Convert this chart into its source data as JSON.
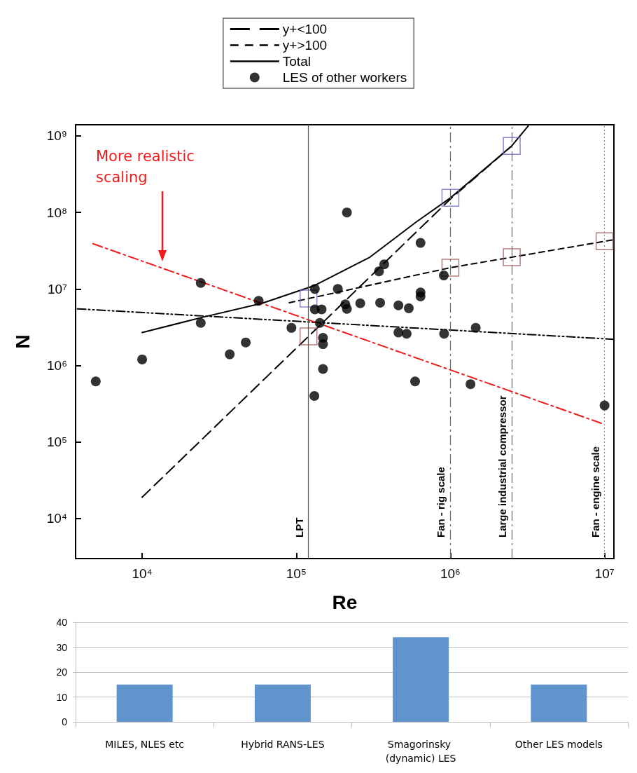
{
  "chart_data": [
    {
      "type": "scatter",
      "xlabel": "Re",
      "ylabel": "N",
      "log": "xy",
      "xlim": [
        3700,
        11500000
      ],
      "ylim": [
        3000,
        1400000000
      ],
      "xticks": [
        {
          "value": 10000,
          "label": "10⁴"
        },
        {
          "value": 100000,
          "label": "10⁵"
        },
        {
          "value": 1000000,
          "label": "10⁶"
        },
        {
          "value": 10000000,
          "label": "10⁷"
        }
      ],
      "yticks": [
        {
          "value": 10000,
          "label": "10⁴"
        },
        {
          "value": 100000,
          "label": "10⁵"
        },
        {
          "value": 1000000,
          "label": "10⁶"
        },
        {
          "value": 10000000,
          "label": "10⁷"
        },
        {
          "value": 100000000,
          "label": "10⁸"
        },
        {
          "value": 1000000000,
          "label": "10⁹"
        }
      ],
      "grid": false,
      "legend": "top",
      "annotations": [
        "More realistic scaling"
      ],
      "ref_lines": [
        {
          "axis": "x",
          "value": 120000,
          "label": "LPT",
          "line_style": "solid",
          "color": "#555555"
        },
        {
          "axis": "x",
          "value": 1000000,
          "label": "Fan - rig scale",
          "line_style": "dash_dot",
          "color": "#666666"
        },
        {
          "axis": "x",
          "value": 2500000,
          "label": "Large industrial compressor",
          "line_style": "dash_dot",
          "color": "#666666"
        },
        {
          "axis": "x",
          "value": 10000000,
          "label": "Fan - engine scale",
          "line_style": "dotted",
          "color": "#888888"
        }
      ],
      "series": [
        {
          "name": "y+<100",
          "type": "line",
          "color": "#000000",
          "line_style": "long_dashed",
          "x": [
            10000,
            120000,
            1000000,
            2500000
          ],
          "values": [
            19000,
            2400000,
            150000000,
            740000000
          ]
        },
        {
          "name": "y+>100",
          "type": "line",
          "color": "#000000",
          "line_style": "dashed",
          "x": [
            90000,
            1000000,
            2500000,
            10000000,
            11500000
          ],
          "values": [
            6600000,
            19000000,
            26000000,
            42000000,
            44000000
          ]
        },
        {
          "name": "Total",
          "type": "line",
          "color": "#000000",
          "line_style": "solid",
          "x": [
            10000,
            25000,
            60000,
            130000,
            300000,
            600000,
            1000000,
            2500000,
            3200000
          ],
          "values": [
            2700000,
            4300000,
            6500000,
            11000000,
            26000000,
            75000000,
            155000000,
            740000000,
            1350000000
          ]
        },
        {
          "name": "LES of other workers",
          "type": "scatter",
          "color": "#000000",
          "marker": "circle",
          "x": [
            5000,
            10000,
            24000,
            24000,
            37000,
            47000,
            57000,
            93000,
            131000,
            132000,
            132000,
            146000,
            142000,
            149000,
            149000,
            149000,
            186000,
            213000,
            208000,
            213000,
            260000,
            344000,
            372000,
            350000,
            460000,
            460000,
            537000,
            520000,
            590000,
            640000,
            640000,
            640000,
            906000,
            910000,
            1350000,
            1460000,
            10000000
          ],
          "values": [
            620000,
            1200000,
            12000000,
            3600000,
            1400000,
            2000000,
            7000000,
            3100000,
            400000,
            10000000,
            5400000,
            5400000,
            3600000,
            2300000,
            1900000,
            900000,
            10000000,
            100000000,
            6300000,
            5500000,
            6500000,
            17000000,
            21000000,
            6600000,
            6100000,
            2700000,
            5600000,
            2600000,
            620000,
            40000000,
            9000000,
            8000000,
            15000000,
            2600000,
            570000,
            3100000,
            300000
          ]
        },
        {
          "type": "line",
          "color": "#000000",
          "line_style": "dash_dot_dot",
          "x": [
            3800,
            11500000
          ],
          "values": [
            5500000,
            2200000
          ]
        },
        {
          "type": "line",
          "color": "#ee1c1c",
          "line_style": "dash_dot",
          "x": [
            4800,
            10000000
          ],
          "values": [
            39000000,
            170000
          ]
        },
        {
          "type": "scatter",
          "color": "#6a6ac8",
          "marker": "square",
          "x": [
            120000,
            1000000,
            2500000
          ],
          "values": [
            7500000,
            155000000,
            740000000
          ]
        },
        {
          "type": "scatter",
          "color": "#a05a5a",
          "marker": "square",
          "x": [
            120000,
            1000000,
            2500000,
            10000000
          ],
          "values": [
            2400000,
            19000000,
            26000000,
            42000000
          ]
        }
      ]
    },
    {
      "type": "bar",
      "categories": [
        "MILES, NLES etc",
        "Hybrid RANS-LES",
        "Smagorinsky (dynamic) LES",
        "Other LES models"
      ],
      "values": [
        15,
        15,
        34,
        15
      ],
      "color": "#5f95cc",
      "ylim": [
        0,
        40
      ],
      "yticks": [
        0,
        10,
        20,
        30,
        40
      ],
      "grid": "y"
    }
  ]
}
